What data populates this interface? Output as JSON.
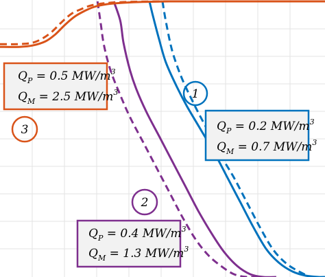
{
  "chart_data": {
    "type": "line",
    "title": "",
    "xlabel": "",
    "ylabel": "",
    "grid": true,
    "xlim": [
      0,
      1
    ],
    "ylim": [
      0,
      1
    ],
    "series": [
      {
        "key": "1",
        "color": "#0072bd",
        "solid": {
          "x": [
            0.46,
            0.47,
            0.49,
            0.51,
            0.54,
            0.575,
            0.62,
            0.66,
            0.7,
            0.74,
            0.78,
            0.82,
            0.86,
            0.9,
            0.94,
            0.98,
            1.0
          ],
          "y": [
            1.0,
            0.95,
            0.86,
            0.78,
            0.7,
            0.62,
            0.53,
            0.45,
            0.36,
            0.27,
            0.18,
            0.1,
            0.05,
            0.02,
            0.005,
            0.0,
            0.0
          ]
        },
        "dashed": {
          "x": [
            0.5,
            0.51,
            0.53,
            0.56,
            0.6,
            0.64,
            0.68,
            0.72,
            0.76,
            0.8,
            0.84,
            0.88,
            0.92,
            0.96,
            1.0
          ],
          "y": [
            1.0,
            0.93,
            0.82,
            0.72,
            0.62,
            0.53,
            0.44,
            0.36,
            0.27,
            0.18,
            0.1,
            0.05,
            0.02,
            0.0,
            0.0
          ]
        }
      },
      {
        "key": "2",
        "color": "#7e2f8e",
        "solid": {
          "x": [
            0.35,
            0.37,
            0.38,
            0.4,
            0.42,
            0.45,
            0.49,
            0.53,
            0.57,
            0.61,
            0.65,
            0.69,
            0.73,
            0.77,
            0.81,
            0.85
          ],
          "y": [
            1.0,
            0.93,
            0.85,
            0.75,
            0.68,
            0.6,
            0.51,
            0.42,
            0.33,
            0.24,
            0.16,
            0.09,
            0.04,
            0.01,
            0.0,
            0.0
          ]
        },
        "dashed": {
          "x": [
            0.3,
            0.31,
            0.32,
            0.34,
            0.37,
            0.4,
            0.44,
            0.48,
            0.52,
            0.56,
            0.6,
            0.64,
            0.68,
            0.72,
            0.76,
            0.8
          ],
          "y": [
            1.0,
            0.92,
            0.84,
            0.75,
            0.66,
            0.58,
            0.49,
            0.4,
            0.31,
            0.22,
            0.14,
            0.08,
            0.04,
            0.01,
            0.0,
            0.0
          ]
        }
      },
      {
        "key": "3",
        "color": "#d95319",
        "solid": {
          "x": [
            0.0,
            0.06,
            0.1,
            0.14,
            0.17,
            0.2,
            0.23,
            0.26,
            0.29,
            0.33,
            0.38,
            0.44,
            0.52,
            0.6,
            1.0
          ],
          "y": [
            0.835,
            0.835,
            0.84,
            0.855,
            0.88,
            0.915,
            0.945,
            0.965,
            0.98,
            0.99,
            0.995,
            0.998,
            1.0,
            1.0,
            1.0
          ]
        },
        "dashed": {
          "x": [
            0.0,
            0.06,
            0.1,
            0.13,
            0.16,
            0.19,
            0.22,
            0.25,
            0.28,
            0.32,
            0.37,
            0.43,
            0.52,
            0.6,
            1.0
          ],
          "y": [
            0.845,
            0.845,
            0.85,
            0.865,
            0.89,
            0.925,
            0.955,
            0.972,
            0.985,
            0.993,
            0.997,
            0.999,
            1.0,
            1.0,
            1.0
          ]
        }
      }
    ],
    "annotations": [
      {
        "id": "box-3",
        "color": "#d95319",
        "line1_main": "Q",
        "line1_sub": "P",
        "line1_value": " = 0.5 MW/m",
        "line1_sup": "3",
        "line2_main": "Q",
        "line2_sub": "M",
        "line2_value": " = 2.5 MW/m",
        "line2_sup": "3"
      },
      {
        "id": "box-1",
        "color": "#0072bd",
        "line1_main": "Q",
        "line1_sub": "P",
        "line1_value": " = 0.2 MW/m",
        "line1_sup": "3",
        "line2_main": "Q",
        "line2_sub": "M",
        "line2_value": " = 0.7 MW/m",
        "line2_sup": "3"
      },
      {
        "id": "box-2",
        "color": "#7e2f8e",
        "line1_main": "Q",
        "line1_sub": "P",
        "line1_value": " = 0.4 MW/m",
        "line1_sup": "3",
        "line2_main": "Q",
        "line2_sub": "M",
        "line2_value": " = 1.3 MW/m",
        "line2_sup": "3"
      }
    ],
    "circle_labels": [
      {
        "text": "1",
        "color": "#0072bd"
      },
      {
        "text": "2",
        "color": "#7e2f8e"
      },
      {
        "text": "3",
        "color": "#d95319"
      }
    ]
  }
}
